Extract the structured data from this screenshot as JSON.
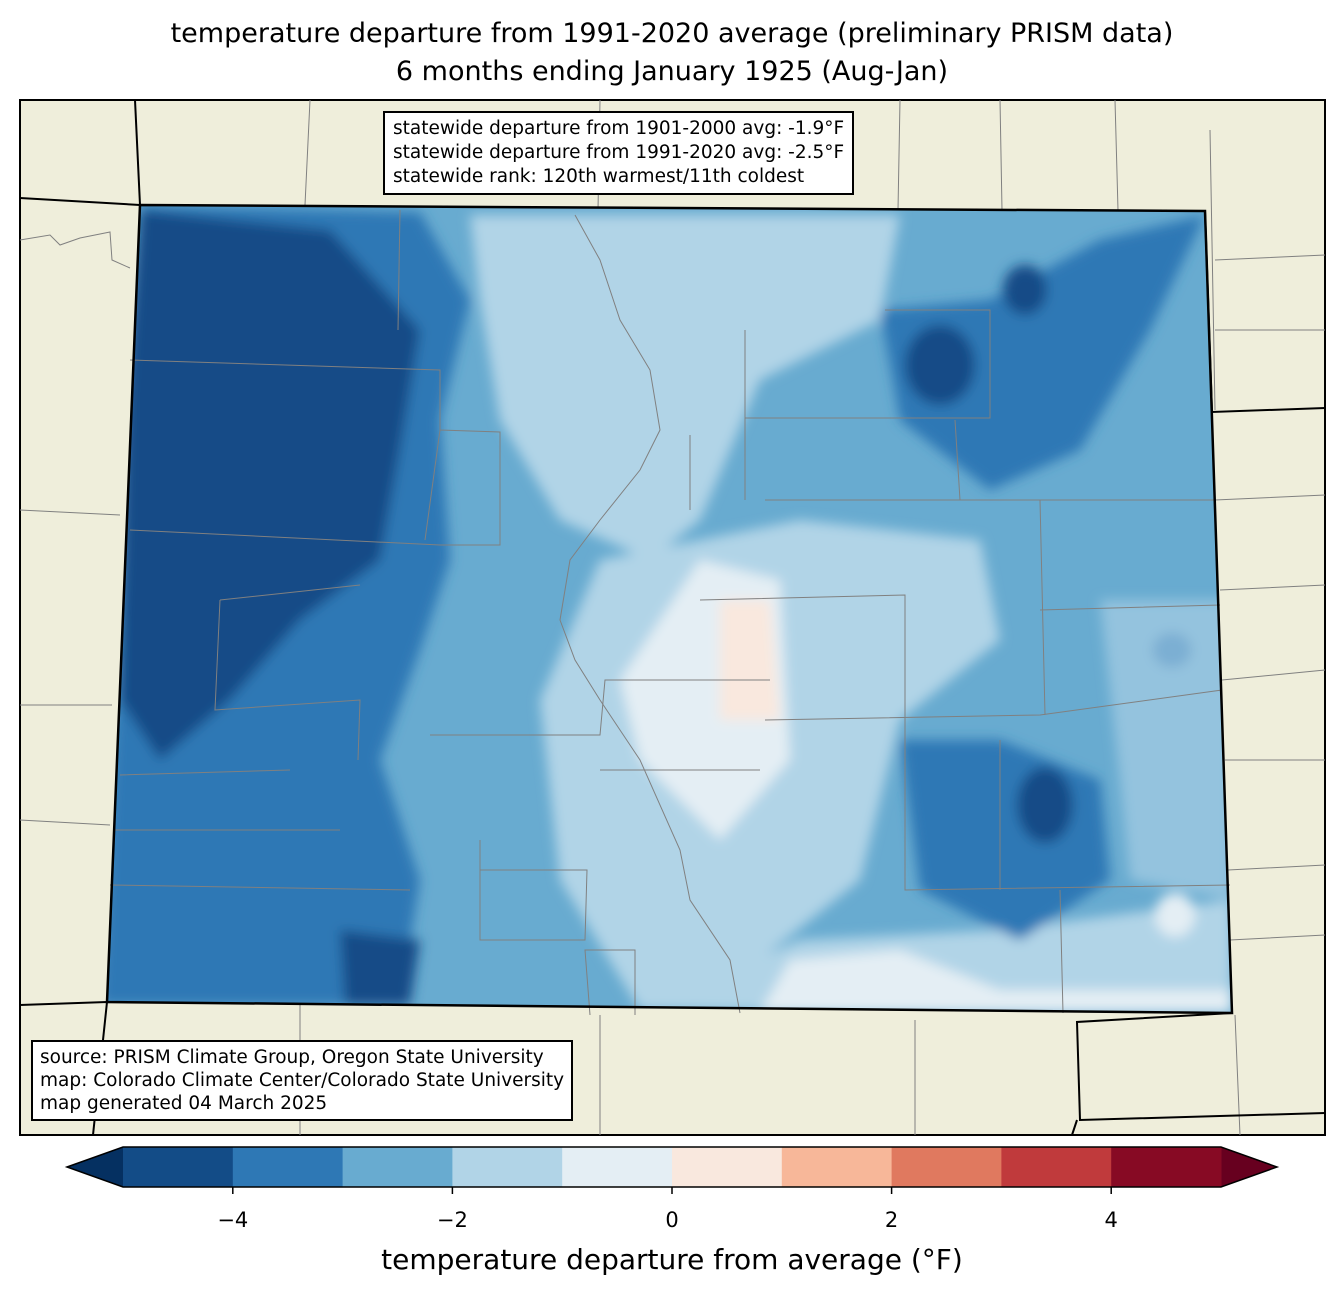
{
  "title": {
    "line1": "temperature departure from 1991-2020 average (preliminary PRISM data)",
    "line2": "6 months ending January 1925 (Aug-Jan)"
  },
  "stats_box": {
    "line1": "statewide departure from 1901-2000 avg: -1.9°F",
    "line2": "statewide departure from 1991-2020 avg: -2.5°F",
    "line3": "statewide rank: 120th warmest/11th coldest"
  },
  "source_box": {
    "line1": "source: PRISM Climate Group, Oregon State University",
    "line2": "map: Colorado Climate Center/Colorado State University",
    "line3": "map generated 04 March 2025"
  },
  "colorbar": {
    "label": "temperature departure from average (°F)",
    "range": [
      -5,
      5
    ],
    "bounds": [
      -5,
      -4,
      -3,
      -2,
      -1,
      0,
      1,
      2,
      3,
      4,
      5
    ],
    "colors": [
      "#134c87",
      "#2e78b5",
      "#68abd0",
      "#b1d4e7",
      "#e4eef4",
      "#f9e8de",
      "#f7b799",
      "#e0795f",
      "#c03a3c",
      "#870a24"
    ],
    "extend_low_color": "#053061",
    "extend_high_color": "#67001f",
    "ticks": [
      {
        "value": -4,
        "label": "−4"
      },
      {
        "value": -2,
        "label": "−2"
      },
      {
        "value": 0,
        "label": "0"
      },
      {
        "value": 2,
        "label": "2"
      },
      {
        "value": 4,
        "label": "4"
      }
    ]
  },
  "colors": {
    "land": "#efeedb",
    "state_border": "#000000",
    "county_border": "#808080"
  }
}
